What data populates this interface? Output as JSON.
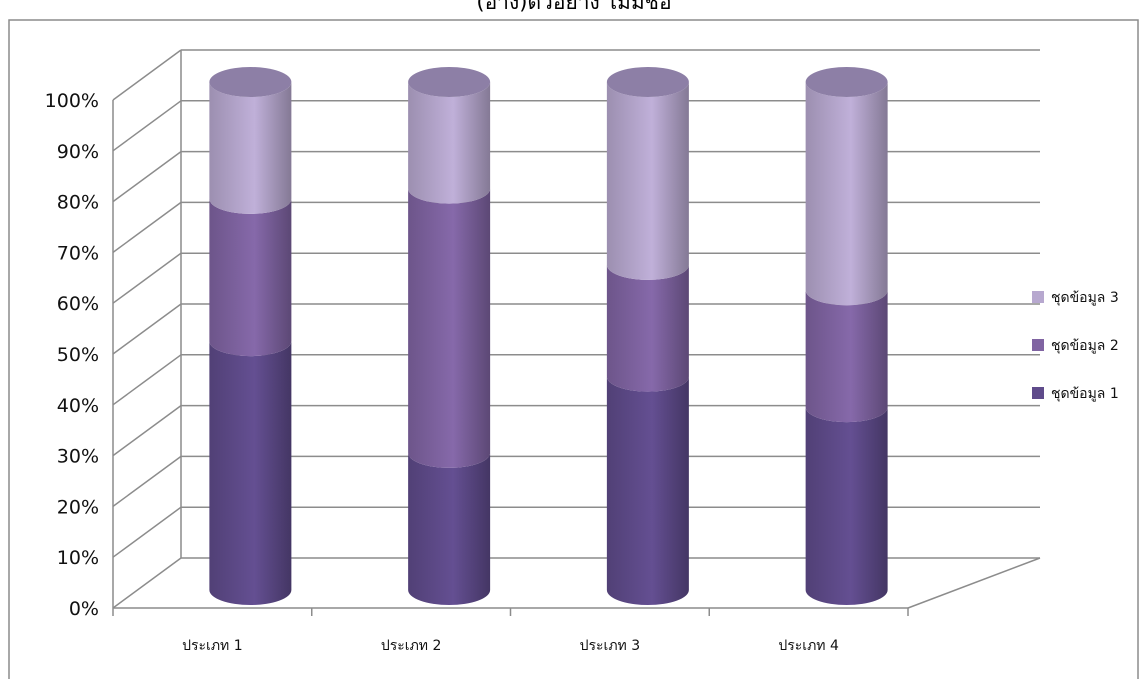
{
  "chart_data": {
    "type": "bar",
    "stacked": true,
    "percent_stacked": true,
    "style": "3d-cylinder",
    "title": "(อ้าง)ตัวอย่าง ไม่มีชื่อ",
    "xlabel": "",
    "ylabel": "",
    "categories": [
      "ประเภท 1",
      "ประเภท 2",
      "ประเภท 3",
      "ประเภท 4"
    ],
    "y_ticks": [
      "0%",
      "10%",
      "20%",
      "30%",
      "40%",
      "50%",
      "60%",
      "70%",
      "80%",
      "90%",
      "100%"
    ],
    "ylim": [
      0,
      100
    ],
    "grid": true,
    "legend_position": "right",
    "series": [
      {
        "name": "ชุดข้อมูล 1",
        "values": [
          49,
          27,
          42,
          36
        ],
        "color": "#5f4b8b"
      },
      {
        "name": "ชุดข้อมูล 2",
        "values": [
          28,
          52,
          22,
          23
        ],
        "color": "#8064a2"
      },
      {
        "name": "ชุดข้อมูล 3",
        "values": [
          23,
          21,
          36,
          41
        ],
        "color": "#b7a8cf"
      }
    ],
    "legend_order": [
      2,
      1,
      0
    ]
  }
}
